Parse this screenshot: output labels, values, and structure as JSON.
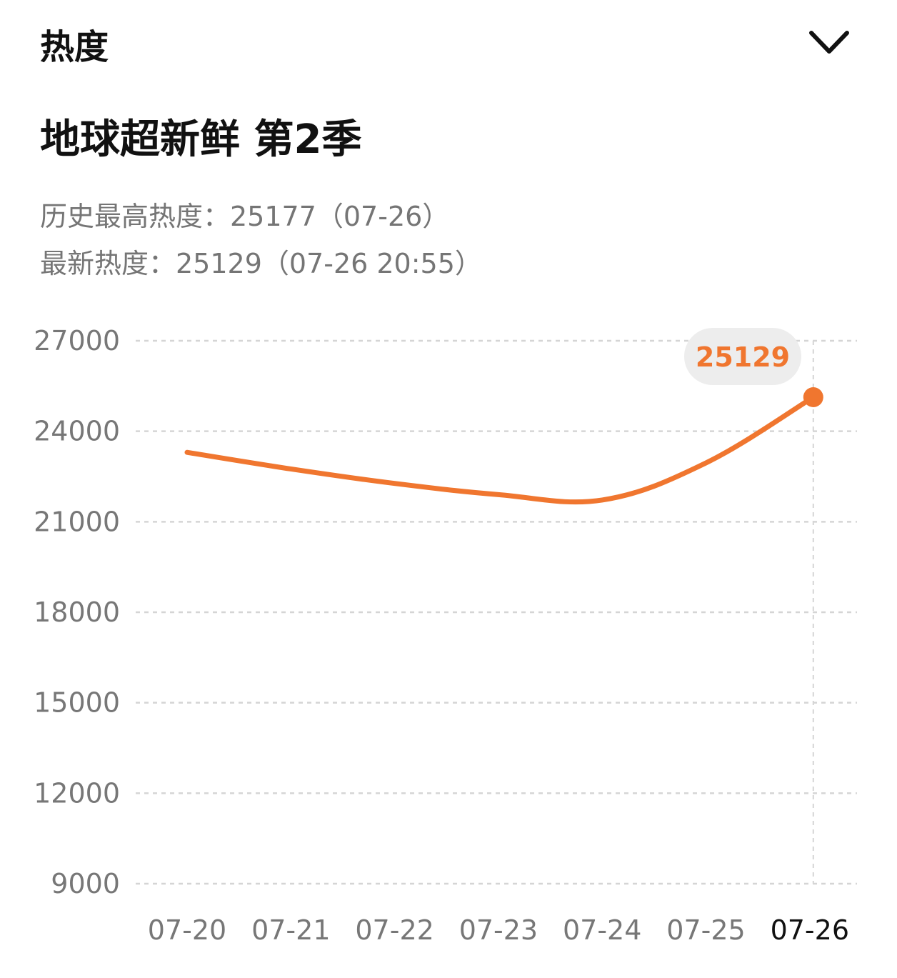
{
  "header": {
    "title": "热度",
    "collapse_icon": "chevron-down-icon"
  },
  "show": {
    "title": "地球超新鲜 第2季"
  },
  "stats": {
    "peak_line": "历史最高热度：25177（07-26）",
    "latest_line": "最新热度：25129（07-26 20:55）"
  },
  "colors": {
    "accent": "#F0762F",
    "grid": "#D5D5D5",
    "tick": "#777777",
    "tick_active": "#111111",
    "callout_bg": "#EDEDED"
  },
  "chart_data": {
    "type": "line",
    "categories": [
      "07-20",
      "07-21",
      "07-22",
      "07-23",
      "07-24",
      "07-25",
      "07-26"
    ],
    "series": [
      {
        "values": [
          23300,
          22750,
          22270,
          21900,
          21720,
          22950,
          25129
        ]
      }
    ],
    "yticks": [
      27000,
      24000,
      21000,
      18000,
      15000,
      12000,
      9000
    ],
    "ylim": [
      9000,
      27000
    ],
    "grid": true,
    "highlight": {
      "category": "07-26",
      "label": "25129"
    },
    "active_category": "07-26",
    "xlabel": "",
    "ylabel": ""
  }
}
